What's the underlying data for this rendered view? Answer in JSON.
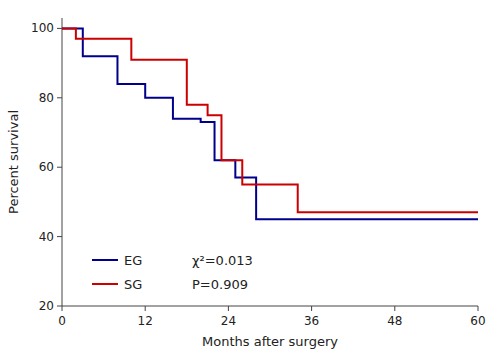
{
  "chart_data": {
    "type": "line",
    "xlabel": "Months after surgery",
    "ylabel": "Percent survival",
    "series": [
      {
        "name": "EG",
        "color": "#00008B",
        "x": [
          0,
          3,
          3,
          8,
          8,
          12,
          12,
          16,
          16,
          20,
          20,
          22,
          22,
          25,
          25,
          28,
          28,
          35,
          35,
          60
        ],
        "values": [
          100,
          100,
          92,
          92,
          84,
          84,
          80,
          80,
          74,
          74,
          73,
          73,
          62,
          62,
          57,
          57,
          45,
          45,
          45,
          45
        ]
      },
      {
        "name": "SG",
        "color": "#CC0000",
        "x": [
          0,
          2,
          2,
          10,
          10,
          18,
          18,
          21,
          21,
          23,
          23,
          26,
          26,
          34,
          34,
          36,
          36,
          60
        ],
        "values": [
          100,
          100,
          97,
          97,
          91,
          91,
          78,
          78,
          75,
          75,
          62,
          62,
          55,
          55,
          47,
          47,
          47,
          47
        ]
      }
    ],
    "xlim": [
      0,
      60
    ],
    "ylim": [
      20,
      103
    ],
    "xticks": [
      0,
      12,
      24,
      36,
      48,
      60
    ],
    "yticks": [
      20,
      40,
      60,
      80,
      100
    ],
    "grid": false,
    "legend": "lower left",
    "annotations": [
      "χ²=0.013",
      "P=0.909"
    ]
  }
}
